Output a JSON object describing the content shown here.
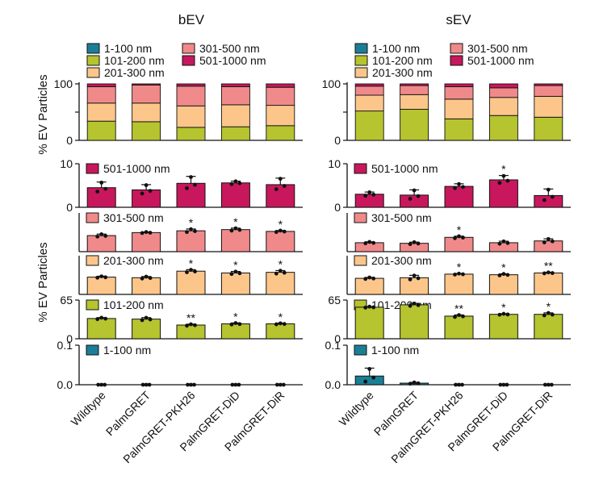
{
  "figure": {
    "y_axis_label_top": "% EV Particles",
    "y_axis_label_bottom": "% EV Particles"
  },
  "legend": {
    "items": [
      {
        "label": "1-100 nm",
        "color": "#1a7f96"
      },
      {
        "label": "101-200 nm",
        "color": "#b5c42f"
      },
      {
        "label": "201-300 nm",
        "color": "#fcc68b"
      },
      {
        "label": "301-500 nm",
        "color": "#f08a8a"
      },
      {
        "label": "501-1000 nm",
        "color": "#c8175d"
      }
    ]
  },
  "chart_data": [
    {
      "panel": "bEV",
      "title": "bEV",
      "type": "bar",
      "categories": [
        "Wildtype",
        "PalmGRET",
        "PalmGRET-PKH26",
        "PalmGRET-DiD",
        "PalmGRET-DiR"
      ],
      "stacked": {
        "ylabel": "% EV Particles",
        "ylim": [
          0,
          100
        ],
        "yticks": [
          "0",
          "50",
          "100"
        ],
        "series": [
          {
            "name": "1-100 nm",
            "values": [
              0,
              0,
              0,
              0,
              0
            ]
          },
          {
            "name": "101-200 nm",
            "values": [
              34,
              33,
              23,
              24,
              26
            ]
          },
          {
            "name": "201-300 nm",
            "values": [
              32,
              33,
              38,
              39,
              36
            ]
          },
          {
            "name": "301-500 nm",
            "values": [
              29,
              32,
              35,
              32,
              32
            ]
          },
          {
            "name": "501-1000 nm",
            "values": [
              5,
              2,
              4,
              5,
              6
            ]
          }
        ]
      },
      "subpanels": [
        {
          "name": "501-1000 nm",
          "ylim": [
            0,
            10
          ],
          "yticks": [
            "0",
            "10"
          ],
          "values": [
            4.5,
            4.0,
            5.5,
            5.6,
            5.2
          ],
          "errors": [
            1.3,
            1.2,
            1.6,
            0.4,
            1.5
          ],
          "stars": [
            "",
            "",
            "",
            "",
            ""
          ]
        },
        {
          "name": "301-500 nm",
          "ylim": [
            0,
            65
          ],
          "yticks": [],
          "values": [
            27,
            32,
            35,
            37,
            34
          ],
          "errors": [
            2.5,
            1.0,
            3.0,
            2.5,
            1.5
          ],
          "stars": [
            "",
            "",
            "*",
            "*",
            "*"
          ]
        },
        {
          "name": "201-300 nm",
          "ylim": [
            0,
            65
          ],
          "yticks": [],
          "values": [
            29,
            28,
            39,
            36,
            37
          ],
          "errors": [
            1.5,
            2.0,
            2.5,
            2.5,
            3.0
          ],
          "stars": [
            "",
            "",
            "*",
            "*",
            "*"
          ]
        },
        {
          "name": "101-200 nm",
          "ylim": [
            0,
            65
          ],
          "yticks": [
            "0",
            "65"
          ],
          "values": [
            34,
            33,
            23,
            25,
            25
          ],
          "errors": [
            1.5,
            2.5,
            1.5,
            1.5,
            1.0
          ],
          "stars": [
            "",
            "",
            "**",
            "*",
            "*"
          ]
        },
        {
          "name": "1-100 nm",
          "ylim": [
            0,
            0.1
          ],
          "yticks": [
            "0.0",
            "0.1"
          ],
          "values": [
            0,
            0,
            0,
            0,
            0
          ],
          "errors": [
            0,
            0,
            0,
            0,
            0
          ],
          "stars": [
            "",
            "",
            "",
            "",
            ""
          ]
        }
      ]
    },
    {
      "panel": "sEV",
      "title": "sEV",
      "type": "bar",
      "categories": [
        "Wildtype",
        "PalmGRET",
        "PalmGRET-PKH26",
        "PalmGRET-DiD",
        "PalmGRET-DiR"
      ],
      "stacked": {
        "ylabel": "",
        "ylim": [
          0,
          100
        ],
        "yticks": [
          "0",
          "50",
          "100"
        ],
        "series": [
          {
            "name": "1-100 nm",
            "values": [
              0,
              0,
              0,
              0,
              0
            ]
          },
          {
            "name": "101-200 nm",
            "values": [
              52,
              55,
              38,
              44,
              41
            ]
          },
          {
            "name": "201-300 nm",
            "values": [
              28,
              26,
              35,
              32,
              37
            ]
          },
          {
            "name": "301-500 nm",
            "values": [
              16,
              16,
              22,
              17,
              19
            ]
          },
          {
            "name": "501-1000 nm",
            "values": [
              4,
              3,
              5,
              7,
              3
            ]
          }
        ]
      },
      "subpanels": [
        {
          "name": "501-1000 nm",
          "ylim": [
            0,
            10
          ],
          "yticks": [
            "0",
            "10"
          ],
          "values": [
            3.0,
            2.8,
            4.8,
            6.3,
            2.7
          ],
          "errors": [
            0.5,
            1.2,
            0.6,
            1.0,
            1.5
          ],
          "stars": [
            "",
            "",
            "",
            "*",
            ""
          ]
        },
        {
          "name": "301-500 nm",
          "ylim": [
            0,
            65
          ],
          "yticks": [],
          "values": [
            15,
            14,
            24,
            15,
            18
          ],
          "errors": [
            1.5,
            2.0,
            2.0,
            2.5,
            3.5
          ],
          "stars": [
            "",
            "",
            "*",
            "",
            ""
          ]
        },
        {
          "name": "201-300 nm",
          "ylim": [
            0,
            65
          ],
          "yticks": [],
          "values": [
            27,
            28,
            34,
            33,
            36
          ],
          "errors": [
            1.5,
            4.0,
            1.0,
            1.5,
            1.0
          ],
          "stars": [
            "",
            "",
            "*",
            "*",
            "**"
          ]
        },
        {
          "name": "101-200 nm",
          "ylim": [
            0,
            65
          ],
          "yticks": [
            "0",
            "65"
          ],
          "values": [
            53,
            57,
            38,
            41,
            41
          ],
          "errors": [
            1.0,
            2.5,
            2.0,
            1.0,
            2.5
          ],
          "stars": [
            "",
            "",
            "**",
            "*",
            "*"
          ]
        },
        {
          "name": "1-100 nm",
          "ylim": [
            0,
            0.1
          ],
          "yticks": [
            "0.0",
            "0.1"
          ],
          "values": [
            0.022,
            0.004,
            0,
            0,
            0
          ],
          "errors": [
            0.02,
            0.002,
            0,
            0,
            0
          ],
          "stars": [
            "",
            "",
            "",
            "",
            ""
          ]
        }
      ]
    }
  ]
}
